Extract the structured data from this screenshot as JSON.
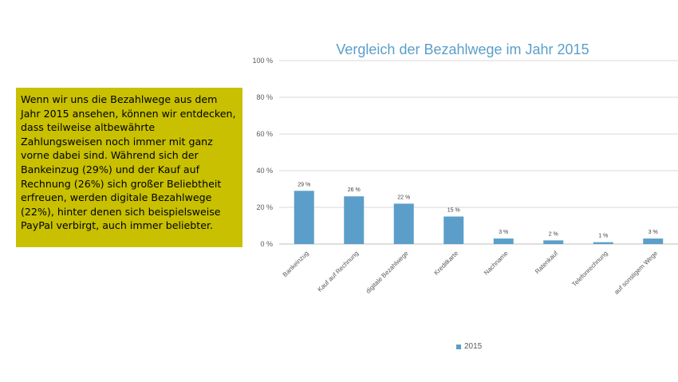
{
  "note": {
    "text": "Wenn wir uns die Bezahlwege aus dem Jahr 2015 ansehen, können wir entdecken, dass teilweise altbewährte Zahlungsweisen noch immer mit ganz vorne dabei sind. Während sich der Bankeinzug (29%) und der Kauf auf Rechnung (26%) sich großer Beliebtheit erfreuen, werden digitale Bezahlwege (22%), hinter denen sich beispielsweise PayPal verbirgt, auch immer beliebter."
  },
  "colors": {
    "bar": "#5b9ec9",
    "note_background": "#c8c000",
    "title": "#5b9ec9"
  },
  "chart_data": {
    "type": "bar",
    "title": "Vergleich der Bezahlwege im Jahr 2015",
    "categories": [
      "Bankeinzug",
      "Kauf auf Rechnung",
      "digitale Bezahlwege",
      "Kreditkarte",
      "Nachname",
      "Ratenkauf",
      "Telefonrechnung",
      "auf sonstigem Wege"
    ],
    "series": [
      {
        "name": "2015",
        "values": [
          29,
          26,
          22,
          15,
          3,
          2,
          1,
          3
        ]
      }
    ],
    "data_labels": [
      "29 %",
      "26 %",
      "22 %",
      "15 %",
      "3 %",
      "2 %",
      "1 %",
      "3 %"
    ],
    "y_ticks": [
      0,
      20,
      40,
      60,
      80,
      100
    ],
    "y_tick_labels": [
      "0 %",
      "20 %",
      "40 %",
      "60 %",
      "80 %",
      "100 %"
    ],
    "ylim": [
      0,
      100
    ],
    "grid": true,
    "legend_position": "bottom"
  }
}
